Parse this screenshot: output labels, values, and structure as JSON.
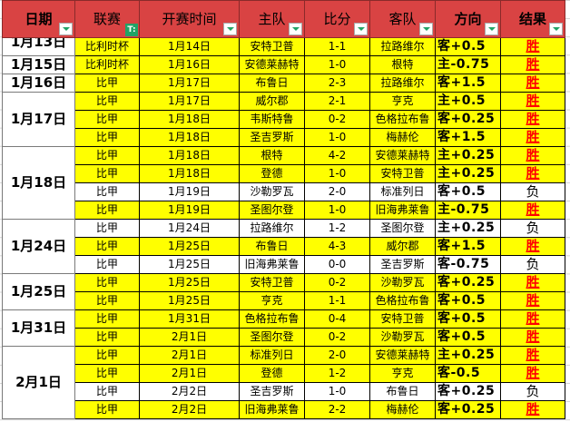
{
  "headers": {
    "date": "日期",
    "league": "联赛",
    "time": "开赛时间",
    "home": "主队",
    "score": "比分",
    "away": "客队",
    "direction": "方向",
    "result": "结果"
  },
  "colors": {
    "header": "#d94343",
    "highlight": "#ffff00",
    "win": "#ff0000",
    "filter_icon": "#21a366"
  },
  "groups": [
    {
      "date": "1月13日",
      "rows": [
        {
          "league": "比利时杯",
          "time": "1月14日",
          "home": "安特卫普",
          "score": "1-1",
          "away": "拉路维尔",
          "direction": "客+0.5",
          "result": "胜",
          "highlight": true
        }
      ]
    },
    {
      "date": "1月15日",
      "rows": [
        {
          "league": "比利时杯",
          "time": "1月16日",
          "home": "安德莱赫特",
          "score": "1-0",
          "away": "根特",
          "direction": "主-0.75",
          "result": "胜",
          "highlight": true
        }
      ]
    },
    {
      "date": "1月16日",
      "rows": [
        {
          "league": "比甲",
          "time": "1月17日",
          "home": "布鲁日",
          "score": "2-3",
          "away": "拉路维尔",
          "direction": "客+1.5",
          "result": "胜",
          "highlight": true
        }
      ]
    },
    {
      "date": "1月17日",
      "rows": [
        {
          "league": "比甲",
          "time": "1月17日",
          "home": "威尔郡",
          "score": "2-1",
          "away": "亨克",
          "direction": "主+0.5",
          "result": "胜",
          "highlight": true
        },
        {
          "league": "比甲",
          "time": "1月18日",
          "home": "韦斯特鲁",
          "score": "0-2",
          "away": "色格拉布鲁",
          "direction": "客+0.25",
          "result": "胜",
          "highlight": true
        },
        {
          "league": "比甲",
          "time": "1月18日",
          "home": "圣吉罗斯",
          "score": "1-0",
          "away": "梅赫伦",
          "direction": "客+1.5",
          "result": "胜",
          "highlight": true
        }
      ]
    },
    {
      "date": "1月18日",
      "rows": [
        {
          "league": "比甲",
          "time": "1月18日",
          "home": "根特",
          "score": "4-2",
          "away": "安德莱赫特",
          "direction": "主+0.25",
          "result": "胜",
          "highlight": true
        },
        {
          "league": "比甲",
          "time": "1月18日",
          "home": "登德",
          "score": "1-0",
          "away": "安特卫普",
          "direction": "主+0.25",
          "result": "胜",
          "highlight": true
        },
        {
          "league": "比甲",
          "time": "1月19日",
          "home": "沙勒罗瓦",
          "score": "2-0",
          "away": "标准列日",
          "direction": "客+0.5",
          "result": "负",
          "highlight": false
        },
        {
          "league": "比甲",
          "time": "1月19日",
          "home": "圣图尔登",
          "score": "1-0",
          "away": "旧海弗莱鲁",
          "direction": "主-0.75",
          "result": "胜",
          "highlight": true
        }
      ]
    },
    {
      "date": "1月24日",
      "rows": [
        {
          "league": "比甲",
          "time": "1月24日",
          "home": "拉路维尔",
          "score": "1-2",
          "away": "圣图尔登",
          "direction": "主+0.25",
          "result": "负",
          "highlight": false
        },
        {
          "league": "比甲",
          "time": "1月25日",
          "home": "布鲁日",
          "score": "4-3",
          "away": "威尔郡",
          "direction": "客+1.5",
          "result": "胜",
          "highlight": true
        },
        {
          "league": "比甲",
          "time": "1月25日",
          "home": "旧海弗莱鲁",
          "score": "0-0",
          "away": "圣吉罗斯",
          "direction": "客-0.75",
          "result": "负",
          "highlight": false
        }
      ]
    },
    {
      "date": "1月25日",
      "rows": [
        {
          "league": "比甲",
          "time": "1月25日",
          "home": "安特卫普",
          "score": "0-2",
          "away": "沙勒罗瓦",
          "direction": "客+0.25",
          "result": "胜",
          "highlight": true
        },
        {
          "league": "比甲",
          "time": "1月25日",
          "home": "亨克",
          "score": "1-1",
          "away": "色格拉布鲁",
          "direction": "客+0.5",
          "result": "胜",
          "highlight": true
        }
      ]
    },
    {
      "date": "1月31日",
      "rows": [
        {
          "league": "比甲",
          "time": "1月31日",
          "home": "色格拉布鲁",
          "score": "0-4",
          "away": "安特卫普",
          "direction": "客+0.5",
          "result": "胜",
          "highlight": true
        },
        {
          "league": "比甲",
          "time": "2月1日",
          "home": "圣图尔登",
          "score": "0-2",
          "away": "沙勒罗瓦",
          "direction": "客+0.5",
          "result": "胜",
          "highlight": true
        }
      ]
    },
    {
      "date": "2月1日",
      "rows": [
        {
          "league": "比甲",
          "time": "2月1日",
          "home": "标准列日",
          "score": "2-0",
          "away": "安德莱赫特",
          "direction": "主+0.25",
          "result": "胜",
          "highlight": true
        },
        {
          "league": "比甲",
          "time": "2月1日",
          "home": "登德",
          "score": "1-2",
          "away": "亨克",
          "direction": "客-0.5",
          "result": "胜",
          "highlight": true
        },
        {
          "league": "比甲",
          "time": "2月2日",
          "home": "圣吉罗斯",
          "score": "1-0",
          "away": "布鲁日",
          "direction": "客+0.25",
          "result": "负",
          "highlight": false
        },
        {
          "league": "比甲",
          "time": "2月2日",
          "home": "旧海弗莱鲁",
          "score": "2-2",
          "away": "梅赫伦",
          "direction": "客+0.25",
          "result": "胜",
          "highlight": true
        }
      ]
    }
  ]
}
